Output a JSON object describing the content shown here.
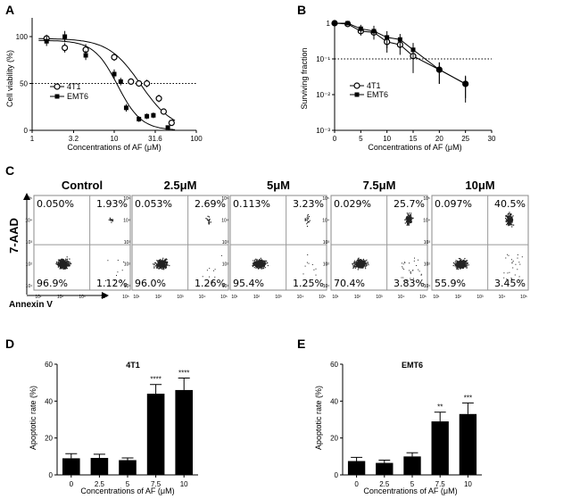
{
  "chart_data": [
    {
      "panel": "A",
      "type": "line",
      "xscale": "log",
      "xlabel": "Concentrations of AF (μM)",
      "ylabel": "Cell viability (%)",
      "xticks": [
        "1",
        "3.2",
        "10",
        "31.6",
        "100"
      ],
      "yticks": [
        "0",
        "50",
        "100"
      ],
      "xlim": [
        1,
        100
      ],
      "ylim": [
        0,
        120
      ],
      "reference_line": 50,
      "legend": [
        "4T1",
        "EMT6"
      ],
      "series": [
        {
          "name": "4T1",
          "marker": "open-circle",
          "x": [
            1.5,
            2.5,
            4.5,
            10,
            16,
            20,
            25,
            35,
            40,
            50
          ],
          "y": [
            98,
            88,
            86,
            78,
            52,
            50,
            50,
            34,
            20,
            8
          ],
          "err": [
            4,
            5,
            6,
            4,
            3,
            3,
            4,
            4,
            3,
            3
          ]
        },
        {
          "name": "EMT6",
          "marker": "filled-square",
          "x": [
            1.5,
            2.5,
            4.5,
            10,
            12,
            14,
            20,
            25,
            30,
            45
          ],
          "y": [
            95,
            100,
            80,
            60,
            52,
            24,
            12,
            15,
            16,
            3
          ],
          "err": [
            5,
            6,
            5,
            5,
            4,
            4,
            3,
            3,
            3,
            2
          ]
        }
      ]
    },
    {
      "panel": "B",
      "type": "line",
      "yscale": "log",
      "xlabel": "Concentrations of AF (μM)",
      "ylabel": "Surviving fraction",
      "xticks": [
        "0",
        "5",
        "10",
        "15",
        "20",
        "25",
        "30"
      ],
      "yticks": [
        "1",
        "10⁻¹",
        "10⁻²",
        "10⁻³"
      ],
      "xlim": [
        0,
        30
      ],
      "ylim": [
        0.001,
        1
      ],
      "reference_line": 0.1,
      "legend": [
        "4T1",
        "EMT6"
      ],
      "series": [
        {
          "name": "4T1",
          "marker": "open-circle",
          "x": [
            0,
            2.5,
            5,
            7.5,
            10,
            12.5,
            15,
            20,
            25
          ],
          "y": [
            1,
            0.95,
            0.6,
            0.55,
            0.3,
            0.25,
            0.12,
            0.05,
            0.02
          ],
          "err": [
            0.1,
            0.1,
            0.15,
            0.2,
            0.15,
            0.12,
            0.08,
            0.03,
            0.012
          ]
        },
        {
          "name": "EMT6",
          "marker": "filled-square",
          "x": [
            0,
            2.5,
            5,
            7.5,
            10,
            12.5,
            15,
            20,
            25
          ],
          "y": [
            1,
            1,
            0.7,
            0.6,
            0.4,
            0.35,
            0.18,
            0.05,
            0.02
          ],
          "err": [
            0.1,
            0.1,
            0.2,
            0.25,
            0.2,
            0.15,
            0.1,
            0.03,
            0.014
          ]
        }
      ]
    },
    {
      "panel": "D",
      "type": "bar",
      "title": "4T1",
      "xlabel": "Concentrations of AF (μM)",
      "ylabel": "Apoptotic rate (%)",
      "categories": [
        "0",
        "2.5",
        "5",
        "7.5",
        "10"
      ],
      "values": [
        9,
        9.2,
        8,
        44,
        46
      ],
      "errors": [
        2.5,
        2,
        1.2,
        5,
        6.5
      ],
      "annotations": [
        "",
        "",
        "",
        "****",
        "****"
      ],
      "yticks": [
        "0",
        "20",
        "40",
        "60"
      ],
      "ylim": [
        0,
        60
      ]
    },
    {
      "panel": "E",
      "type": "bar",
      "title": "EMT6",
      "xlabel": "Concentrations of AF (μM)",
      "ylabel": "Apoptotic rate (%)",
      "categories": [
        "0",
        "2.5",
        "5",
        "7.5",
        "10"
      ],
      "values": [
        7.5,
        6.5,
        10,
        29,
        33
      ],
      "errors": [
        2,
        1.5,
        2,
        5,
        6
      ],
      "annotations": [
        "",
        "",
        "",
        "**",
        "***"
      ],
      "yticks": [
        "0",
        "20",
        "40",
        "60"
      ],
      "ylim": [
        0,
        60
      ]
    }
  ],
  "panels": {
    "a": "A",
    "b": "B",
    "c": "C",
    "d": "D",
    "e": "E"
  },
  "flow": {
    "ylabel": "7-AAD",
    "xlabel": "Annexin V",
    "tick_labels": [
      "10¹",
      "10²",
      "10³",
      "10⁴",
      "10⁵"
    ],
    "plots": [
      {
        "title": "Control",
        "ul": "0.050%",
        "ur": "1.93%",
        "ll": "96.9%",
        "lr": "1.12%"
      },
      {
        "title": "2.5μM",
        "ul": "0.053%",
        "ur": "2.69%",
        "ll": "96.0%",
        "lr": "1.26%"
      },
      {
        "title": "5μM",
        "ul": "0.113%",
        "ur": "3.23%",
        "ll": "95.4%",
        "lr": "1.25%"
      },
      {
        "title": "7.5μM",
        "ul": "0.029%",
        "ur": "25.7%",
        "ll": "70.4%",
        "lr": "3.83%"
      },
      {
        "title": "10μM",
        "ul": "0.097%",
        "ur": "40.5%",
        "ll": "55.9%",
        "lr": "3.45%"
      }
    ]
  }
}
